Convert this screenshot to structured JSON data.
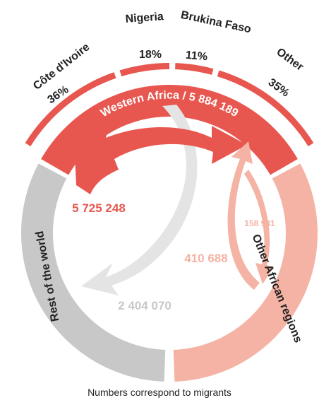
{
  "diagram": {
    "center_region": {
      "label": "Western Africa / 5 884 189"
    },
    "countries": [
      {
        "label": "Côte d'Ivoire",
        "share": "36%"
      },
      {
        "label": "Nigeria",
        "share": "18%"
      },
      {
        "label": "Brukina Faso",
        "share": "11%"
      },
      {
        "label": "Other",
        "share": "35%"
      }
    ],
    "regions": [
      {
        "label": "Rest of the world"
      },
      {
        "label": "Other African regions"
      }
    ],
    "flows": [
      {
        "label": "5 725 248"
      },
      {
        "label": "2 404 070"
      },
      {
        "label": "410 688"
      },
      {
        "label": "158 941"
      }
    ],
    "footnote": "Numbers correspond to migrants"
  }
}
